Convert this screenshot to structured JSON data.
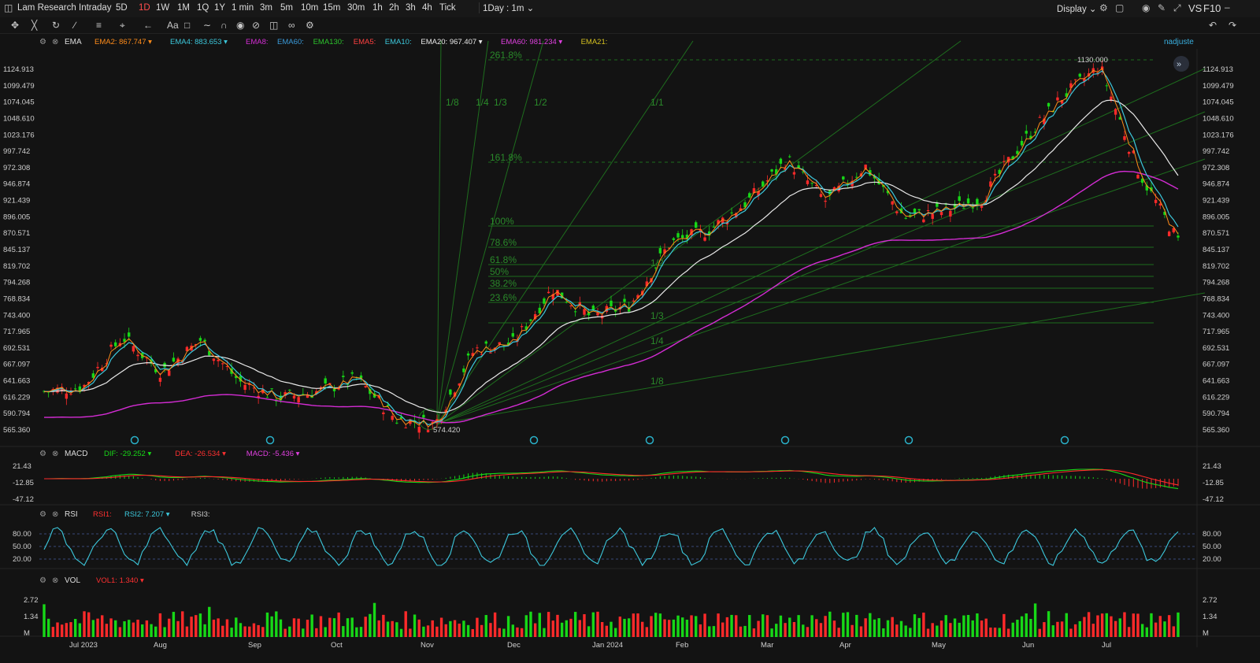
{
  "top_bar": {
    "symbol": "Lam Research",
    "timeframes": [
      "Intraday",
      "5D",
      "1D",
      "1W",
      "1M",
      "1Q",
      "1Y",
      "1 min",
      "3m",
      "5m",
      "10m",
      "15m",
      "30m",
      "1h",
      "2h",
      "3h",
      "4h",
      "Tick"
    ],
    "active_timeframe": "1D",
    "interval_select": "1Day : 1m",
    "display_label": "Display",
    "compare_label": "VS",
    "f10_label": "F10"
  },
  "toolbar": {
    "icons": [
      "crosshair-icon",
      "cursor-icon",
      "pencil-cycle-icon",
      "line-tool-icon",
      "fib-tool-icon",
      "measure-icon",
      "arrow-tool-icon",
      "text-icon",
      "note-icon",
      "brush-icon",
      "magnet-icon",
      "lock-icon",
      "hide-icon",
      "trash-icon",
      "link-icon",
      "settings-icon"
    ],
    "right_icons": [
      "undo-icon",
      "redo-icon"
    ]
  },
  "colors": {
    "up": "#ff2a2a",
    "down": "#17d817",
    "white_ema": "#e8e8e8",
    "ema60": "#d42cd4",
    "cyan": "#3cc8dc",
    "orange_ema": "#ff8c1a",
    "fib": "#1e6e1e",
    "fib_text": "#2a8a2a",
    "axis_text": "#cfcfcf"
  },
  "price_pane": {
    "indicator": "EMA",
    "legend": [
      {
        "label": "EMA2:",
        "value": "867.747",
        "color": "#ff8c1a"
      },
      {
        "label": "EMA4:",
        "value": "883.653",
        "color": "#3cc8dc"
      },
      {
        "label": "EMA8:",
        "value": "",
        "color": "#d42cd4"
      },
      {
        "label": "EMA60:",
        "value": "",
        "color": "#3a9ad9"
      },
      {
        "label": "EMA130:",
        "value": "",
        "color": "#2cc22c"
      },
      {
        "label": "EMA5:",
        "value": "",
        "color": "#ff4040"
      },
      {
        "label": "EMA10:",
        "value": "",
        "color": "#3cc8dc"
      },
      {
        "label": "EMA20:",
        "value": "967.407",
        "color": "#e8e8e8"
      },
      {
        "label": "EMA60:",
        "value": "981.234",
        "color": "#e040e0"
      },
      {
        "label": "EMA21:",
        "value": "",
        "color": "#d4c020"
      }
    ],
    "user": "nadjuste",
    "high_label": "1130.000",
    "low_label": "574.420",
    "fib_retracement": [
      "261.8%",
      "161.8%",
      "100%",
      "78.6%",
      "61.8%",
      "50%",
      "38.2%",
      "23.6%"
    ],
    "fib_fan": [
      "1/8",
      "1/4",
      "1/3",
      "1/2",
      "1/1",
      "1/2",
      "1/3",
      "1/4",
      "1/8"
    ]
  },
  "macd_pane": {
    "name": "MACD",
    "legend": [
      {
        "label": "DIF:",
        "value": "-29.252",
        "color": "#17d817"
      },
      {
        "label": "DEA:",
        "value": "-26.534",
        "color": "#ff3030"
      },
      {
        "label": "MACD:",
        "value": "-5.436",
        "color": "#e040e0"
      }
    ]
  },
  "rsi_pane": {
    "name": "RSI",
    "legend": [
      {
        "label": "RSI1:",
        "value": "",
        "color": "#ff3030"
      },
      {
        "label": "RSI2:",
        "value": "7.207",
        "color": "#3cc8dc"
      },
      {
        "label": "RSI3:",
        "value": "",
        "color": "#cfcfcf"
      }
    ]
  },
  "vol_pane": {
    "name": "VOL",
    "legend": [
      {
        "label": "VOL1:",
        "value": "1.340",
        "color": "#ff3030"
      }
    ]
  },
  "chart_data": {
    "type": "candlestick",
    "title": "Lam Research",
    "interval": "1D",
    "price_axis_ticks": [
      "1124.913",
      "1099.479",
      "1074.045",
      "1048.610",
      "1023.176",
      "997.742",
      "972.308",
      "946.874",
      "921.439",
      "896.005",
      "870.571",
      "845.137",
      "819.702",
      "794.268",
      "768.834",
      "743.400",
      "717.965",
      "692.531",
      "667.097",
      "641.663",
      "616.229",
      "590.794",
      "565.360"
    ],
    "time_axis_ticks": [
      "Jul 2023",
      "Aug",
      "Sep",
      "Oct",
      "Nov",
      "Dec",
      "Jan 2024",
      "Feb",
      "Mar",
      "Apr",
      "May",
      "Jun",
      "Jul"
    ],
    "close_series_approx": [
      {
        "date": "Jul 2023",
        "close": 625
      },
      {
        "date": "mid Jul",
        "close": 632
      },
      {
        "date": "Aug",
        "close": 710
      },
      {
        "date": "mid Aug",
        "close": 655
      },
      {
        "date": "Sep",
        "close": 705
      },
      {
        "date": "mid Sep",
        "close": 640
      },
      {
        "date": "Sep end",
        "close": 615
      },
      {
        "date": "Oct",
        "close": 625
      },
      {
        "date": "mid Oct",
        "close": 645
      },
      {
        "date": "Oct end",
        "close": 582
      },
      {
        "date": "Nov 1",
        "close": 574.42
      },
      {
        "date": "mid Nov",
        "close": 690
      },
      {
        "date": "Dec",
        "close": 700
      },
      {
        "date": "mid Dec",
        "close": 785
      },
      {
        "date": "Jan 2024",
        "close": 740
      },
      {
        "date": "mid Jan",
        "close": 760
      },
      {
        "date": "late Jan",
        "close": 855
      },
      {
        "date": "Feb",
        "close": 875
      },
      {
        "date": "mid Feb",
        "close": 920
      },
      {
        "date": "Mar",
        "close": 985
      },
      {
        "date": "mid Mar",
        "close": 920
      },
      {
        "date": "Apr",
        "close": 975
      },
      {
        "date": "mid Apr",
        "close": 895
      },
      {
        "date": "May",
        "close": 905
      },
      {
        "date": "mid May",
        "close": 925
      },
      {
        "date": "Jun",
        "close": 1010
      },
      {
        "date": "mid Jun",
        "close": 1080
      },
      {
        "date": "Jul",
        "close": 1130
      },
      {
        "date": "mid Jul",
        "close": 965
      },
      {
        "date": "last",
        "close": 858
      }
    ],
    "swing_high": 1130.0,
    "swing_low": 574.42,
    "macd_axis_ticks": [
      "21.43",
      "-12.85",
      "-47.12"
    ],
    "rsi_axis_ticks": [
      "80.00",
      "50.00",
      "20.00"
    ],
    "volume_axis_ticks": [
      "2.72",
      "1.34",
      "M"
    ],
    "grid": false
  }
}
